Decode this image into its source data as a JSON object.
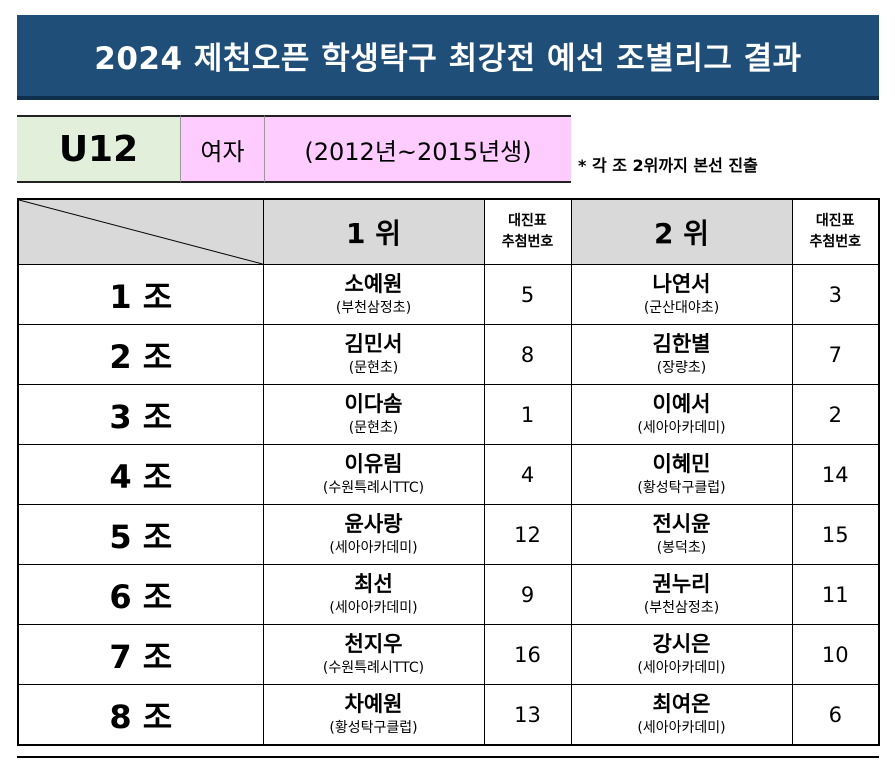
{
  "title": "2024 제천오픈 학생탁구 최강전 예선 조별리그 결과",
  "category": "U12",
  "gender": "여자",
  "years": "(2012년~2015년생)",
  "note": "* 각 조 2위까지 본선 진출",
  "header": {
    "rank1": "1 위",
    "rank2": "2 위",
    "draw_line1": "대진표",
    "draw_line2": "추첨번호"
  },
  "groups": [
    {
      "group": "1 조",
      "first": {
        "name": "소예원",
        "club": "(부천삼정초)",
        "draw": "5"
      },
      "second": {
        "name": "나연서",
        "club": "(군산대야초)",
        "draw": "3"
      }
    },
    {
      "group": "2 조",
      "first": {
        "name": "김민서",
        "club": "(문현초)",
        "draw": "8"
      },
      "second": {
        "name": "김한별",
        "club": "(장량초)",
        "draw": "7"
      }
    },
    {
      "group": "3 조",
      "first": {
        "name": "이다솜",
        "club": "(문현초)",
        "draw": "1"
      },
      "second": {
        "name": "이예서",
        "club": "(세아아카데미)",
        "draw": "2"
      }
    },
    {
      "group": "4 조",
      "first": {
        "name": "이유림",
        "club": "(수원특례시TTC)",
        "draw": "4"
      },
      "second": {
        "name": "이혜민",
        "club": "(황성탁구클럽)",
        "draw": "14"
      }
    },
    {
      "group": "5 조",
      "first": {
        "name": "윤사랑",
        "club": "(세아아카데미)",
        "draw": "12"
      },
      "second": {
        "name": "전시윤",
        "club": "(봉덕초)",
        "draw": "15"
      }
    },
    {
      "group": "6 조",
      "first": {
        "name": "최선",
        "club": "(세아아카데미)",
        "draw": "9"
      },
      "second": {
        "name": "권누리",
        "club": "(부천삼정초)",
        "draw": "11"
      }
    },
    {
      "group": "7 조",
      "first": {
        "name": "천지우",
        "club": "(수원특례시TTC)",
        "draw": "16"
      },
      "second": {
        "name": "강시은",
        "club": "(세아아카데미)",
        "draw": "10"
      }
    },
    {
      "group": "8 조",
      "first": {
        "name": "차예원",
        "club": "(황성탁구클럽)",
        "draw": "13"
      },
      "second": {
        "name": "최여온",
        "club": "(세아아카데미)",
        "draw": "6"
      }
    }
  ],
  "colors": {
    "title_bg": "#1f4e79",
    "category_bg": "#e2efda",
    "gender_bg": "#ffccff",
    "header_bg": "#d9d9d9"
  }
}
